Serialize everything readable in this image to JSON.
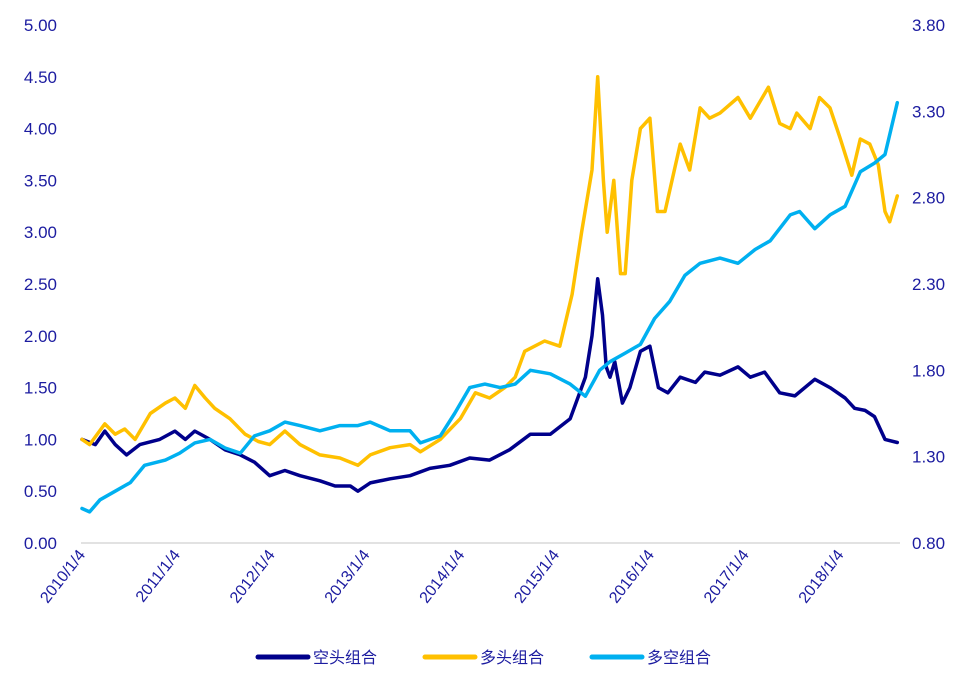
{
  "chart_data": {
    "type": "line",
    "title": "",
    "xlabel": "",
    "ylabel": "",
    "y_left": {
      "range": [
        0,
        5
      ],
      "ticks": [
        "0.00",
        "0.50",
        "1.00",
        "1.50",
        "2.00",
        "2.50",
        "3.00",
        "3.50",
        "4.00",
        "4.50",
        "5.00"
      ]
    },
    "y_right": {
      "range": [
        0.8,
        3.8
      ],
      "ticks": [
        "0.80",
        "1.30",
        "1.80",
        "2.30",
        "2.80",
        "3.30",
        "3.80"
      ]
    },
    "x_range": [
      2010.0,
      8.6
    ],
    "x_ticks": [
      "2010/1/4",
      "2011/1/4",
      "2012/1/4",
      "2013/1/4",
      "2014/1/4",
      "2015/1/4",
      "2016/1/4",
      "2017/1/4",
      "2018/1/4"
    ],
    "grid": false,
    "legend_position": "bottom",
    "series": [
      {
        "name": "空头组合",
        "axis": "left",
        "color": "#00008b",
        "x": [
          0,
          0.14,
          0.24,
          0.35,
          0.47,
          0.61,
          0.82,
          0.98,
          1.09,
          1.19,
          1.35,
          1.51,
          1.67,
          1.82,
          1.98,
          2.14,
          2.3,
          2.51,
          2.67,
          2.83,
          2.91,
          3.04,
          3.25,
          3.46,
          3.67,
          3.88,
          4.09,
          4.3,
          4.51,
          4.73,
          4.94,
          5.15,
          5.31,
          5.38,
          5.44,
          5.49,
          5.53,
          5.57,
          5.62,
          5.7,
          5.78,
          5.89,
          5.99,
          6.08,
          6.18,
          6.31,
          6.47,
          6.57,
          6.73,
          6.92,
          7.05,
          7.2,
          7.36,
          7.52,
          7.73,
          7.89,
          8.05,
          8.15,
          8.26,
          8.36,
          8.47,
          8.6
        ],
        "y": [
          1.0,
          0.95,
          1.08,
          0.95,
          0.85,
          0.95,
          1.0,
          1.08,
          1.0,
          1.08,
          1.0,
          0.9,
          0.85,
          0.78,
          0.65,
          0.7,
          0.65,
          0.6,
          0.55,
          0.55,
          0.5,
          0.58,
          0.62,
          0.65,
          0.72,
          0.75,
          0.82,
          0.8,
          0.9,
          1.05,
          1.05,
          1.2,
          1.6,
          2.0,
          2.55,
          2.2,
          1.7,
          1.6,
          1.75,
          1.35,
          1.5,
          1.85,
          1.9,
          1.5,
          1.45,
          1.6,
          1.55,
          1.65,
          1.62,
          1.7,
          1.6,
          1.65,
          1.45,
          1.42,
          1.58,
          1.5,
          1.4,
          1.3,
          1.28,
          1.22,
          1.0,
          0.97
        ]
      },
      {
        "name": "多头组合",
        "axis": "left",
        "color": "#ffc000",
        "x": [
          0,
          0.08,
          0.24,
          0.35,
          0.45,
          0.56,
          0.72,
          0.88,
          0.98,
          1.09,
          1.19,
          1.3,
          1.4,
          1.56,
          1.72,
          1.86,
          1.98,
          2.14,
          2.3,
          2.51,
          2.72,
          2.91,
          3.04,
          3.25,
          3.46,
          3.57,
          3.78,
          3.99,
          4.15,
          4.3,
          4.46,
          4.57,
          4.67,
          4.88,
          5.04,
          5.17,
          5.27,
          5.38,
          5.44,
          5.5,
          5.54,
          5.61,
          5.68,
          5.73,
          5.8,
          5.89,
          5.99,
          6.07,
          6.15,
          6.31,
          6.41,
          6.52,
          6.62,
          6.73,
          6.92,
          7.05,
          7.24,
          7.36,
          7.47,
          7.54,
          7.68,
          7.78,
          7.89,
          8.0,
          8.12,
          8.21,
          8.31,
          8.4,
          8.47,
          8.52,
          8.6
        ],
        "y": [
          1.0,
          0.95,
          1.15,
          1.05,
          1.1,
          1.0,
          1.25,
          1.35,
          1.4,
          1.3,
          1.52,
          1.4,
          1.3,
          1.2,
          1.05,
          0.98,
          0.95,
          1.08,
          0.95,
          0.85,
          0.82,
          0.75,
          0.85,
          0.92,
          0.95,
          0.88,
          1.0,
          1.2,
          1.45,
          1.4,
          1.5,
          1.6,
          1.85,
          1.95,
          1.9,
          2.4,
          3.0,
          3.6,
          4.5,
          3.5,
          3.0,
          3.5,
          2.6,
          2.6,
          3.5,
          4.0,
          4.1,
          3.2,
          3.2,
          3.85,
          3.6,
          4.2,
          4.1,
          4.15,
          4.3,
          4.1,
          4.4,
          4.05,
          4.0,
          4.15,
          4.0,
          4.3,
          4.2,
          3.9,
          3.55,
          3.9,
          3.85,
          3.65,
          3.2,
          3.1,
          3.35
        ]
      },
      {
        "name": "多空组合",
        "axis": "right",
        "color": "#00b0f0",
        "x": [
          0,
          0.08,
          0.19,
          0.35,
          0.51,
          0.66,
          0.88,
          1.03,
          1.19,
          1.35,
          1.51,
          1.67,
          1.82,
          1.98,
          2.14,
          2.3,
          2.51,
          2.72,
          2.91,
          3.04,
          3.25,
          3.46,
          3.57,
          3.78,
          3.93,
          4.09,
          4.25,
          4.41,
          4.57,
          4.73,
          4.94,
          5.15,
          5.31,
          5.41,
          5.46,
          5.57,
          5.73,
          5.89,
          6.04,
          6.2,
          6.36,
          6.52,
          6.73,
          6.92,
          7.1,
          7.26,
          7.47,
          7.57,
          7.73,
          7.89,
          8.05,
          8.21,
          8.36,
          8.47,
          8.6
        ],
        "y": [
          1.0,
          0.98,
          1.05,
          1.1,
          1.15,
          1.25,
          1.28,
          1.32,
          1.38,
          1.4,
          1.35,
          1.32,
          1.42,
          1.45,
          1.5,
          1.48,
          1.45,
          1.48,
          1.48,
          1.5,
          1.45,
          1.45,
          1.38,
          1.42,
          1.55,
          1.7,
          1.72,
          1.7,
          1.72,
          1.8,
          1.78,
          1.72,
          1.65,
          1.75,
          1.8,
          1.85,
          1.9,
          1.95,
          2.1,
          2.2,
          2.35,
          2.42,
          2.45,
          2.42,
          2.5,
          2.55,
          2.7,
          2.72,
          2.62,
          2.7,
          2.75,
          2.95,
          3.0,
          3.05,
          3.35
        ]
      }
    ]
  }
}
